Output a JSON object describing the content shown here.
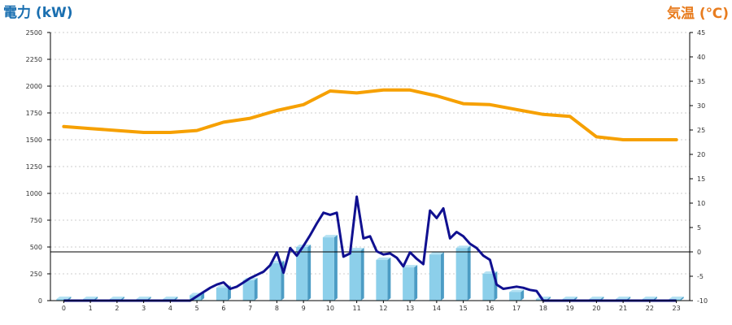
{
  "chart_data": {
    "type": "bar+line",
    "left_axis_title": "電力 (kW)",
    "right_axis_title": "気温 (℃)",
    "colors": {
      "left_title": "#1a6fb0",
      "right_title": "#e87c1e",
      "bars": "#8ccfea",
      "bars_side": "#4c9cc4",
      "power_line": "#101090",
      "temp_line": "#f6a000",
      "grid": "#cccccc",
      "reference_line": "#000000"
    },
    "x": [
      "0",
      "1",
      "2",
      "3",
      "4",
      "5",
      "6",
      "7",
      "8",
      "9",
      "10",
      "11",
      "12",
      "13",
      "14",
      "15",
      "16",
      "17",
      "18",
      "19",
      "20",
      "21",
      "22",
      "23"
    ],
    "ylim_left": [
      0,
      2500
    ],
    "yticks_left": [
      "0",
      "250",
      "500",
      "750",
      "1000",
      "1250",
      "1500",
      "1750",
      "2000",
      "2250",
      "2500"
    ],
    "ylim_right": [
      -10,
      45
    ],
    "yticks_right": [
      "-10",
      "-5",
      "0",
      "5",
      "10",
      "15",
      "20",
      "25",
      "30",
      "35",
      "40",
      "45"
    ],
    "reference_line_right": 0,
    "grid": true,
    "bar_series": {
      "values": [
        0,
        0,
        0,
        0,
        0,
        50,
        120,
        190,
        350,
        500,
        590,
        470,
        380,
        310,
        430,
        490,
        250,
        80,
        0,
        0,
        0,
        0,
        0,
        0
      ]
    },
    "power_line": {
      "x": [
        0,
        1,
        2,
        3,
        4,
        4.75,
        5,
        5.25,
        5.5,
        5.75,
        6,
        6.25,
        6.5,
        6.75,
        7,
        7.25,
        7.5,
        7.75,
        8,
        8.25,
        8.5,
        8.75,
        9,
        9.25,
        9.5,
        9.75,
        10,
        10.25,
        10.5,
        10.75,
        11,
        11.25,
        11.5,
        11.75,
        12,
        12.25,
        12.5,
        12.75,
        13,
        13.25,
        13.5,
        13.75,
        14,
        14.25,
        14.5,
        14.75,
        15,
        15.25,
        15.5,
        15.75,
        16,
        16.25,
        16.5,
        16.75,
        17,
        17.25,
        17.5,
        17.75,
        18,
        18.5,
        19,
        20,
        21,
        22,
        23
      ],
      "values": [
        0,
        0,
        0,
        0,
        0,
        0,
        40,
        80,
        120,
        150,
        170,
        110,
        130,
        170,
        210,
        240,
        270,
        330,
        450,
        260,
        490,
        420,
        510,
        610,
        720,
        820,
        800,
        820,
        410,
        440,
        970,
        580,
        600,
        460,
        430,
        440,
        400,
        320,
        450,
        390,
        340,
        840,
        770,
        860,
        580,
        640,
        600,
        530,
        490,
        420,
        380,
        150,
        110,
        120,
        130,
        120,
        100,
        90,
        0,
        0,
        0,
        0,
        0,
        0,
        0
      ]
    },
    "temp_line": {
      "values": [
        25.7,
        25.3,
        24.9,
        24.5,
        24.5,
        24.9,
        26.6,
        27.4,
        29.0,
        30.2,
        33.0,
        32.6,
        33.2,
        33.2,
        32.0,
        30.4,
        30.2,
        29.2,
        28.2,
        27.8,
        23.6,
        23.0,
        23.0,
        23.0
      ]
    }
  }
}
